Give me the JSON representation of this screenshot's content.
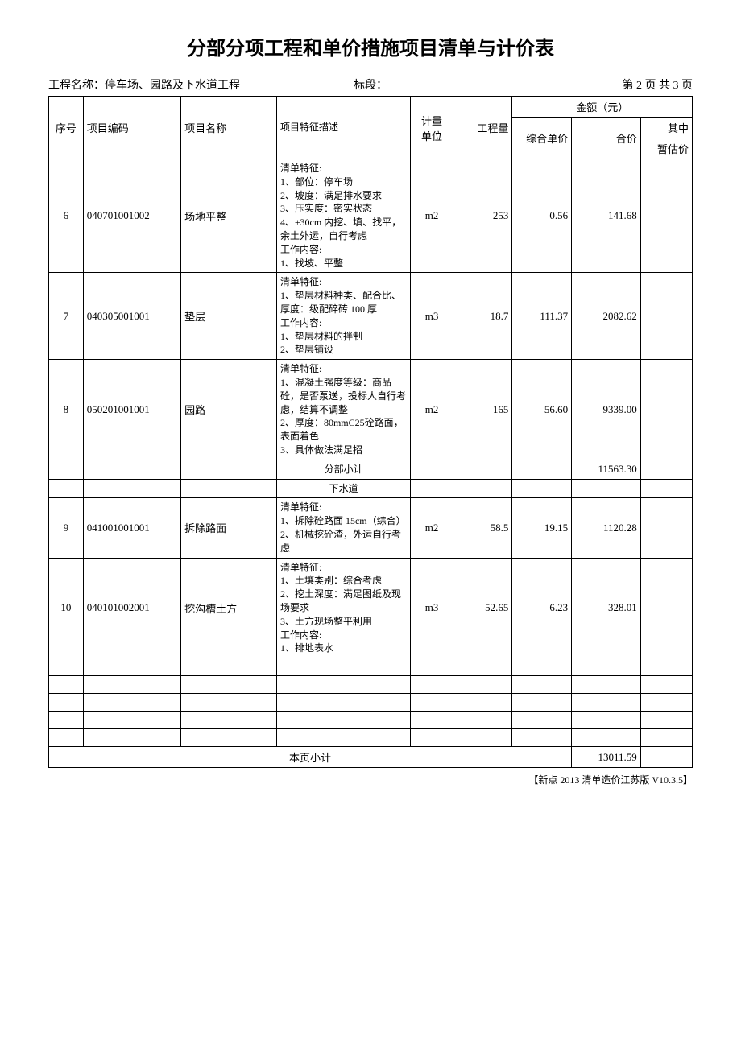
{
  "title": "分部分项工程和单价措施项目清单与计价表",
  "meta": {
    "project_label": "工程名称：",
    "project_name": "停车场、园路及下水道工程",
    "section_label": "标段：",
    "page_info": "第 2 页 共 3 页"
  },
  "headers": {
    "seq": "序号",
    "code": "项目编码",
    "name": "项目名称",
    "desc": "项目特征描述",
    "unit": "计量\n单位",
    "qty": "工程量",
    "amount_group": "金额（元）",
    "unit_price": "综合单价",
    "total_price": "合价",
    "of_which": "其中",
    "estimate": "暂估价"
  },
  "rows": [
    {
      "seq": "6",
      "code": "040701001002",
      "name": "场地平整",
      "desc": "清单特征:\n1、部位：停车场\n2、坡度：满足排水要求\n3、压实度：密实状态\n4、±30cm 内挖、填、找平，余土外运，自行考虑\n工作内容:\n1、找坡、平整",
      "unit": "m2",
      "qty": "253",
      "unit_price": "0.56",
      "total_price": "141.68",
      "estimate": ""
    },
    {
      "seq": "7",
      "code": "040305001001",
      "name": "垫层",
      "desc": "清单特征:\n1、垫层材料种类、配合比、厚度：级配碎砖 100 厚\n工作内容:\n1、垫层材料的拌制\n2、垫层铺设",
      "unit": "m3",
      "qty": "18.7",
      "unit_price": "111.37",
      "total_price": "2082.62",
      "estimate": ""
    },
    {
      "seq": "8",
      "code": "050201001001",
      "name": "园路",
      "desc": "清单特征:\n1、混凝土强度等级：商品砼，是否泵送，投标人自行考虑，结算不调整\n2、厚度：80mmC25砼路面，表面着色\n3、具体做法满足招",
      "unit": "m2",
      "qty": "165",
      "unit_price": "56.60",
      "total_price": "9339.00",
      "estimate": ""
    }
  ],
  "subtotal": {
    "label": "分部小计",
    "value": "11563.30"
  },
  "section": {
    "label": "下水道"
  },
  "rows2": [
    {
      "seq": "9",
      "code": "041001001001",
      "name": "拆除路面",
      "desc": "清单特征:\n1、拆除砼路面 15cm（综合）\n2、机械挖砼渣，外运自行考虑",
      "unit": "m2",
      "qty": "58.5",
      "unit_price": "19.15",
      "total_price": "1120.28",
      "estimate": ""
    },
    {
      "seq": "10",
      "code": "040101002001",
      "name": "挖沟槽土方",
      "desc": "清单特征:\n1、土壤类别：综合考虑\n2、挖土深度：满足图纸及现场要求\n3、土方现场整平利用\n工作内容:\n1、排地表水",
      "unit": "m3",
      "qty": "52.65",
      "unit_price": "6.23",
      "total_price": "328.01",
      "estimate": ""
    }
  ],
  "empty_rows": 5,
  "page_total": {
    "label": "本页小计",
    "value": "13011.59"
  },
  "footer": "【新点 2013 清单造价江苏版  V10.3.5】"
}
